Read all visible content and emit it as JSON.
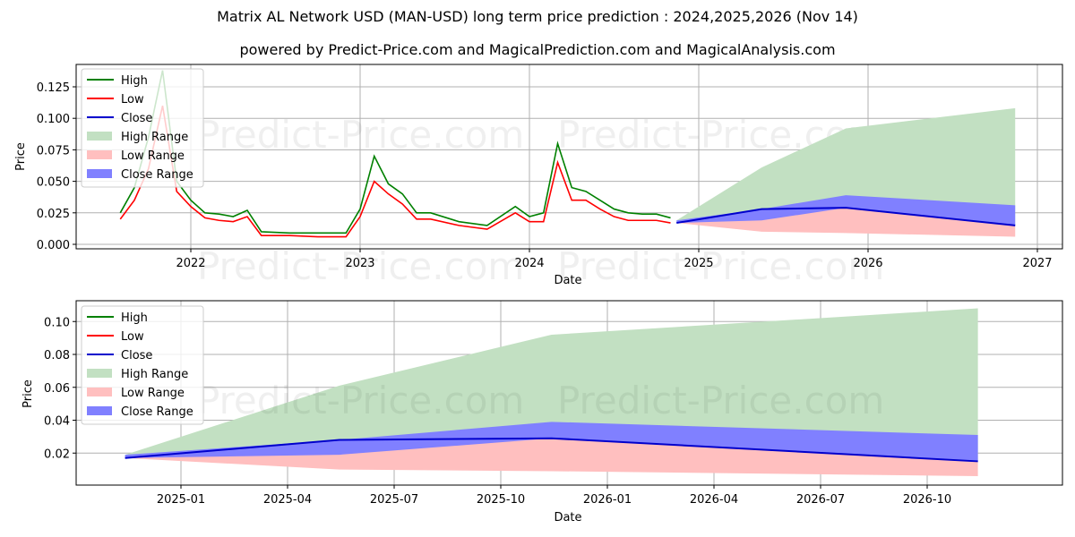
{
  "header": {
    "title": "Matrix AL Network USD (MAN-USD) long term price prediction : 2024,2025,2026 (Nov 14)",
    "subtitle": "powered by Predict-Price.com and MagicalPrediction.com and MagicalAnalysis.com"
  },
  "watermark": "Predict-Price.com",
  "colors": {
    "high": "#008000",
    "low": "#ff0000",
    "close": "#0000cc",
    "high_range": "#c2e0c2",
    "low_range": "#ffbfbf",
    "close_range": "#8080ff"
  },
  "legend": [
    "High",
    "Low",
    "Close",
    "High Range",
    "Low Range",
    "Close Range"
  ],
  "top_chart": {
    "xlabel": "Date",
    "ylabel": "Price",
    "xticks": [
      "2022",
      "2023",
      "2024",
      "2025",
      "2026",
      "2027"
    ],
    "yticks": [
      "0.000",
      "0.025",
      "0.050",
      "0.075",
      "0.100",
      "0.125"
    ]
  },
  "bottom_chart": {
    "xlabel": "Date",
    "ylabel": "Price",
    "xticks": [
      "2025-01",
      "2025-04",
      "2025-07",
      "2025-10",
      "2026-01",
      "2026-04",
      "2026-07",
      "2026-10"
    ],
    "yticks": [
      "0.02",
      "0.04",
      "0.06",
      "0.08",
      "0.10"
    ]
  },
  "chart_data": [
    {
      "type": "line",
      "title": "Matrix AL Network USD (MAN-USD) long term price prediction : 2024,2025,2026 (Nov 14)",
      "subtitle": "powered by Predict-Price.com and MagicalPrediction.com and MagicalAnalysis.com",
      "xlabel": "Date",
      "ylabel": "Price",
      "ylim": [
        0,
        0.14
      ],
      "xlim": [
        "2021-05",
        "2027-02"
      ],
      "grid": true,
      "legend_position": "upper left",
      "x": [
        "2021-08",
        "2021-09",
        "2021-10",
        "2021-11",
        "2021-12",
        "2022-01",
        "2022-02",
        "2022-03",
        "2022-04",
        "2022-05",
        "2022-06",
        "2022-08",
        "2022-10",
        "2022-12",
        "2023-01",
        "2023-02",
        "2023-03",
        "2023-04",
        "2023-05",
        "2023-06",
        "2023-08",
        "2023-10",
        "2023-12",
        "2024-01",
        "2024-02",
        "2024-03",
        "2024-04",
        "2024-05",
        "2024-06",
        "2024-07",
        "2024-08",
        "2024-09",
        "2024-10",
        "2024-11"
      ],
      "series": [
        {
          "name": "High",
          "values": [
            0.025,
            0.045,
            0.085,
            0.138,
            0.05,
            0.035,
            0.025,
            0.024,
            0.022,
            0.027,
            0.01,
            0.009,
            0.009,
            0.009,
            0.028,
            0.07,
            0.048,
            0.04,
            0.025,
            0.025,
            0.018,
            0.015,
            0.03,
            0.022,
            0.025,
            0.08,
            0.045,
            0.042,
            0.035,
            0.028,
            0.025,
            0.024,
            0.024,
            0.021
          ]
        },
        {
          "name": "Low",
          "values": [
            0.02,
            0.035,
            0.06,
            0.11,
            0.042,
            0.03,
            0.021,
            0.019,
            0.018,
            0.022,
            0.007,
            0.007,
            0.006,
            0.006,
            0.022,
            0.05,
            0.04,
            0.032,
            0.02,
            0.02,
            0.015,
            0.012,
            0.025,
            0.018,
            0.018,
            0.065,
            0.035,
            0.035,
            0.028,
            0.022,
            0.019,
            0.019,
            0.019,
            0.017
          ]
        }
      ],
      "forecast": {
        "x": [
          "2024-11-14",
          "2025-05-15",
          "2025-11-14",
          "2026-11-14"
        ],
        "close": [
          0.017,
          0.028,
          0.029,
          0.015
        ],
        "high_range": {
          "upper": [
            0.019,
            0.061,
            0.092,
            0.108
          ],
          "lower": [
            0.017,
            0.028,
            0.029,
            0.015
          ]
        },
        "low_range": {
          "upper": [
            0.017,
            0.028,
            0.029,
            0.015
          ],
          "lower": [
            0.017,
            0.01,
            0.009,
            0.006
          ]
        },
        "close_range": {
          "upper": [
            0.019,
            0.028,
            0.039,
            0.031
          ],
          "lower": [
            0.017,
            0.019,
            0.029,
            0.015
          ]
        }
      },
      "xticks": [
        "2022",
        "2023",
        "2024",
        "2025",
        "2026",
        "2027"
      ],
      "yticks": [
        0.0,
        0.025,
        0.05,
        0.075,
        0.1,
        0.125
      ]
    },
    {
      "type": "area",
      "title": "",
      "xlabel": "Date",
      "ylabel": "Price",
      "ylim": [
        0,
        0.112
      ],
      "xlim": [
        "2024-10",
        "2026-12"
      ],
      "grid": true,
      "legend_position": "upper left",
      "x": [
        "2024-11-14",
        "2025-05-15",
        "2025-11-14",
        "2026-11-14"
      ],
      "series": [
        {
          "name": "Close",
          "values": [
            0.017,
            0.028,
            0.029,
            0.015
          ]
        },
        {
          "name": "High Range Upper",
          "values": [
            0.019,
            0.061,
            0.092,
            0.108
          ]
        },
        {
          "name": "Close Range Upper",
          "values": [
            0.019,
            0.028,
            0.039,
            0.031
          ]
        },
        {
          "name": "Close Range Lower",
          "values": [
            0.017,
            0.019,
            0.029,
            0.015
          ]
        },
        {
          "name": "Low Range Lower",
          "values": [
            0.017,
            0.01,
            0.009,
            0.006
          ]
        }
      ],
      "xticks": [
        "2025-01",
        "2025-04",
        "2025-07",
        "2025-10",
        "2026-01",
        "2026-04",
        "2026-07",
        "2026-10"
      ],
      "yticks": [
        0.02,
        0.04,
        0.06,
        0.08,
        0.1
      ]
    }
  ]
}
